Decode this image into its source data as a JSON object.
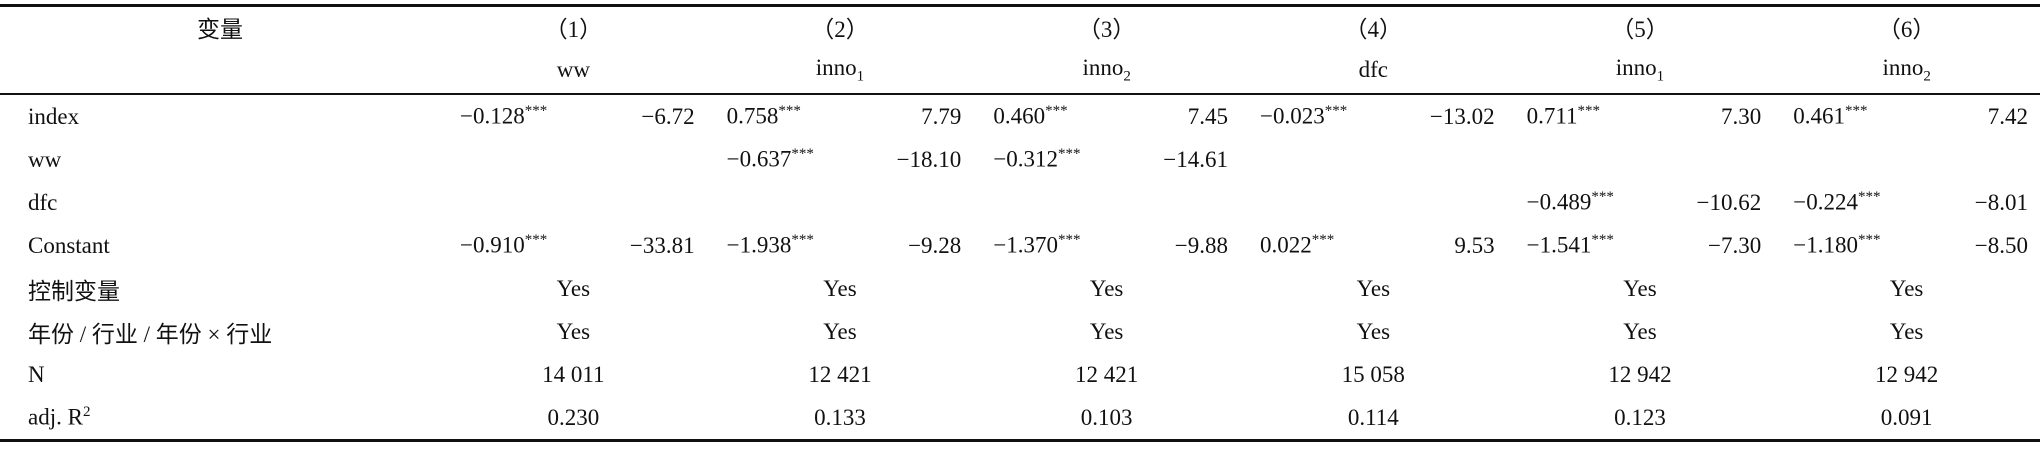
{
  "table": {
    "header": {
      "label": "变量",
      "columns": [
        "（1）",
        "（2）",
        "（3）",
        "（4）",
        "（5）",
        "（6）"
      ],
      "depvars": [
        {
          "text": "ww",
          "sub": null
        },
        {
          "text": "inno",
          "sub": "1"
        },
        {
          "text": "inno",
          "sub": "2"
        },
        {
          "text": "dfc",
          "sub": null
        },
        {
          "text": "inno",
          "sub": "1"
        },
        {
          "text": "inno",
          "sub": "2"
        }
      ]
    },
    "coef_rows": [
      {
        "label": "index",
        "cells": [
          {
            "coef": "−0.128",
            "stars": "***",
            "t": "−6.72"
          },
          {
            "coef": "0.758",
            "stars": "***",
            "t": "7.79"
          },
          {
            "coef": "0.460",
            "stars": "***",
            "t": "7.45"
          },
          {
            "coef": "−0.023",
            "stars": "***",
            "t": "−13.02"
          },
          {
            "coef": "0.711",
            "stars": "***",
            "t": "7.30"
          },
          {
            "coef": "0.461",
            "stars": "***",
            "t": "7.42"
          }
        ]
      },
      {
        "label": "ww",
        "cells": [
          null,
          {
            "coef": "−0.637",
            "stars": "***",
            "t": "−18.10"
          },
          {
            "coef": "−0.312",
            "stars": "***",
            "t": "−14.61"
          },
          null,
          null,
          null
        ]
      },
      {
        "label": "dfc",
        "cells": [
          null,
          null,
          null,
          null,
          {
            "coef": "−0.489",
            "stars": "***",
            "t": "−10.62"
          },
          {
            "coef": "−0.224",
            "stars": "***",
            "t": "−8.01"
          }
        ]
      },
      {
        "label": "Constant",
        "cells": [
          {
            "coef": "−0.910",
            "stars": "***",
            "t": "−33.81"
          },
          {
            "coef": "−1.938",
            "stars": "***",
            "t": "−9.28"
          },
          {
            "coef": "−1.370",
            "stars": "***",
            "t": "−9.88"
          },
          {
            "coef": "0.022",
            "stars": "***",
            "t": "9.53"
          },
          {
            "coef": "−1.541",
            "stars": "***",
            "t": "−7.30"
          },
          {
            "coef": "−1.180",
            "stars": "***",
            "t": "−8.50"
          }
        ]
      }
    ],
    "plain_rows": [
      {
        "label": "控制变量",
        "sup": null,
        "cells": [
          "Yes",
          "Yes",
          "Yes",
          "Yes",
          "Yes",
          "Yes"
        ]
      },
      {
        "label": "年份 / 行业 / 年份 × 行业",
        "sup": null,
        "cells": [
          "Yes",
          "Yes",
          "Yes",
          "Yes",
          "Yes",
          "Yes"
        ]
      },
      {
        "label": "N",
        "sup": null,
        "cells": [
          "14 011",
          "12 421",
          "12 421",
          "15 058",
          "12 942",
          "12 942"
        ]
      },
      {
        "label": "adj. R",
        "sup": "2",
        "cells": [
          "0.230",
          "0.133",
          "0.103",
          "0.114",
          "0.123",
          "0.091"
        ]
      }
    ]
  }
}
